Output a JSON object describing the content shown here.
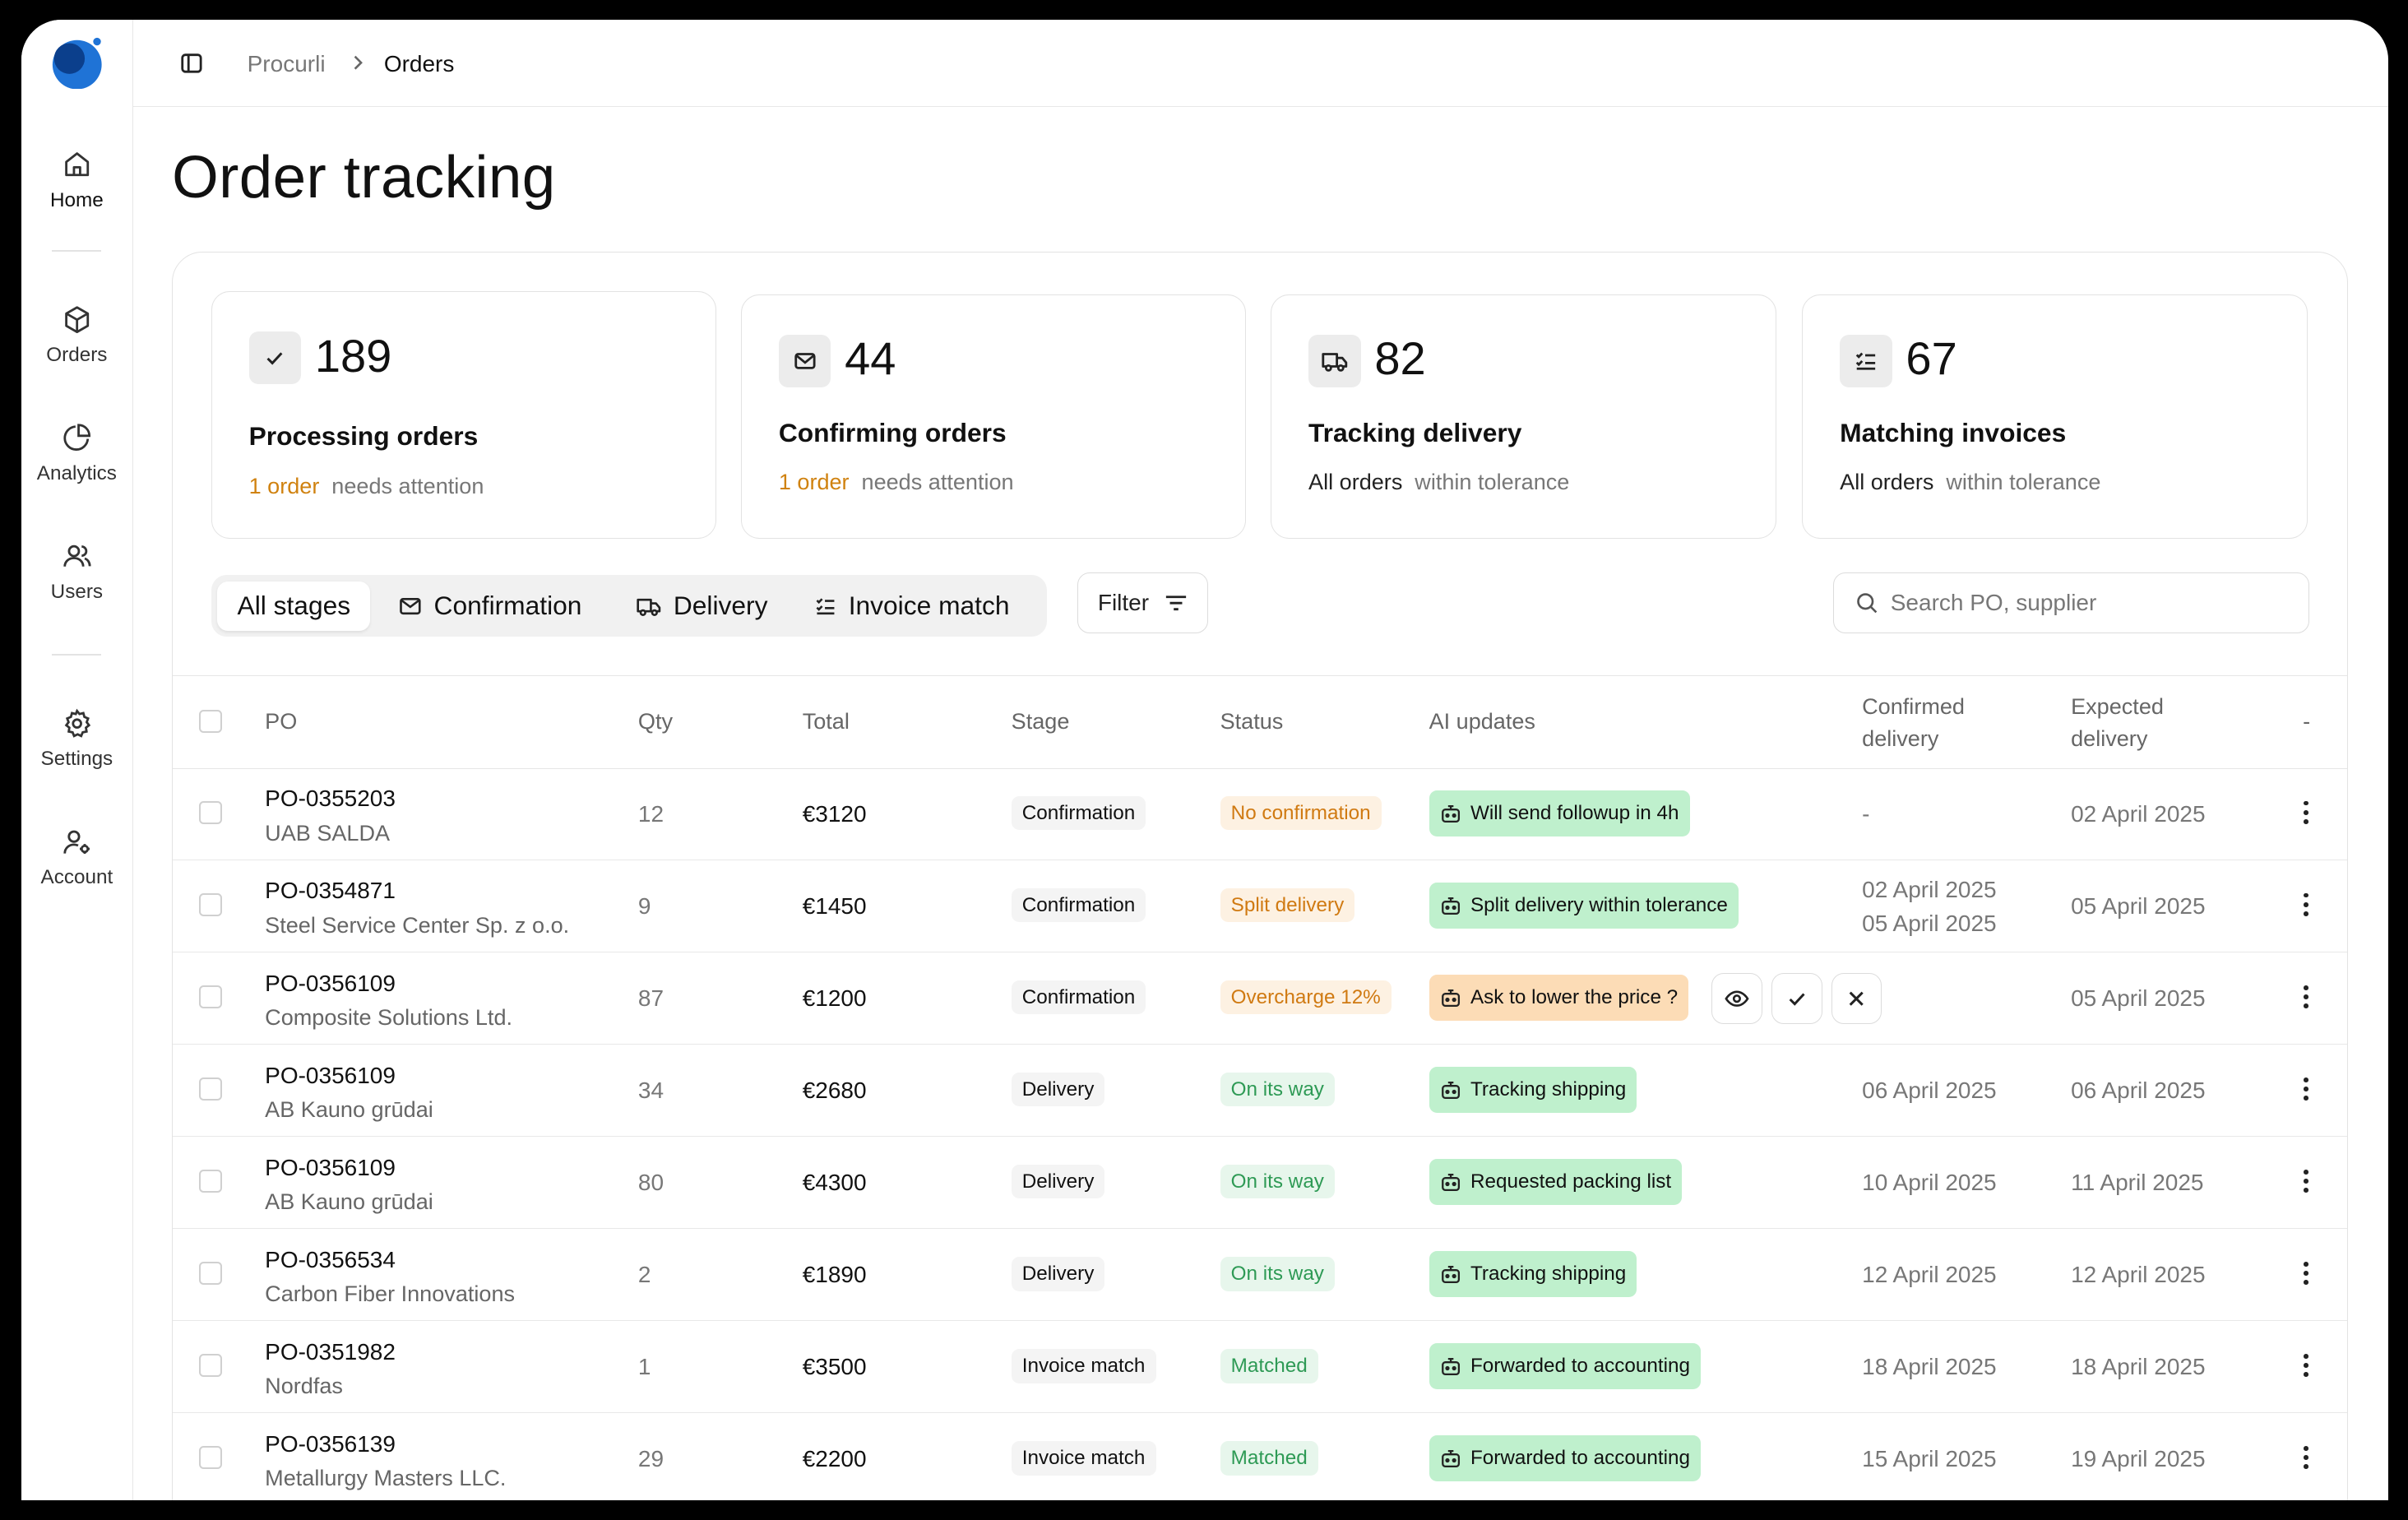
{
  "sidebar": {
    "items": [
      {
        "label": "Home",
        "icon": "home-icon"
      },
      {
        "label": "Orders",
        "icon": "box-icon"
      },
      {
        "label": "Analytics",
        "icon": "pie-chart-icon"
      },
      {
        "label": "Users",
        "icon": "users-icon"
      },
      {
        "label": "Settings",
        "icon": "gear-icon"
      },
      {
        "label": "Account",
        "icon": "user-cog-icon"
      }
    ]
  },
  "breadcrumb": {
    "root": "Procurli",
    "separator": ">",
    "current": "Orders"
  },
  "page": {
    "title": "Order tracking"
  },
  "summary": [
    {
      "count": "189",
      "label": "Processing orders",
      "highlight": "1 order",
      "rest": "needs attention",
      "icon": "check-icon"
    },
    {
      "count": "44",
      "label": "Confirming orders",
      "highlight": "1 order",
      "rest": "needs attention",
      "icon": "mail-icon"
    },
    {
      "count": "82",
      "label": "Tracking delivery",
      "highlight": "All orders",
      "rest": "within tolerance",
      "icon": "truck-icon"
    },
    {
      "count": "67",
      "label": "Matching invoices",
      "highlight": "All orders",
      "rest": "within tolerance",
      "icon": "list-check-icon"
    }
  ],
  "tabs": [
    {
      "label": "All stages",
      "active": true
    },
    {
      "label": "Confirmation"
    },
    {
      "label": "Delivery"
    },
    {
      "label": "Invoice match"
    }
  ],
  "filter_label": "Filter",
  "search": {
    "placeholder": "Search PO, supplier"
  },
  "table": {
    "headers": {
      "po": "PO",
      "qty": "Qty",
      "total": "Total",
      "stage": "Stage",
      "status": "Status",
      "ai": "AI updates",
      "confirmed_1": "Confirmed",
      "confirmed_2": "delivery",
      "expected_1": "Expected",
      "expected_2": "delivery",
      "more": "-"
    },
    "rows": [
      {
        "po": "PO-0355203",
        "supplier": "UAB SALDA",
        "qty": "12",
        "total": "€3120",
        "stage": "Confirmation",
        "status": "No confirmation",
        "status_tone": "orange",
        "ai": "Will send followup in 4h",
        "ai_tone": "green",
        "confirmed": "-",
        "confirmed2": "",
        "expected": "02 April 2025"
      },
      {
        "po": "PO-0354871",
        "supplier": "Steel Service Center Sp. z o.o.",
        "qty": "9",
        "total": "€1450",
        "stage": "Confirmation",
        "status": "Split delivery",
        "status_tone": "orange",
        "ai": "Split delivery within tolerance",
        "ai_tone": "green",
        "confirmed": "02 April 2025",
        "confirmed2": "05 April 2025",
        "expected": "05 April 2025"
      },
      {
        "po": "PO-0356109",
        "supplier": "Composite Solutions Ltd.",
        "qty": "87",
        "total": "€1200",
        "stage": "Confirmation",
        "status": "Overcharge 12%",
        "status_tone": "orange",
        "ai": "Ask to lower the price ?",
        "ai_tone": "orange",
        "confirmed": "",
        "confirmed2": "",
        "expected": "05 April 2025",
        "actions": true
      },
      {
        "po": "PO-0356109",
        "supplier": "AB Kauno grūdai",
        "qty": "34",
        "total": "€2680",
        "stage": "Delivery",
        "status": "On its way",
        "status_tone": "green",
        "ai": "Tracking shipping",
        "ai_tone": "green",
        "confirmed": "06 April 2025",
        "confirmed2": "",
        "expected": "06 April 2025"
      },
      {
        "po": "PO-0356109",
        "supplier": "AB Kauno grūdai",
        "qty": "80",
        "total": "€4300",
        "stage": "Delivery",
        "status": "On its way",
        "status_tone": "green",
        "ai": "Requested packing list",
        "ai_tone": "green",
        "confirmed": "10 April 2025",
        "confirmed2": "",
        "expected": "11 April 2025"
      },
      {
        "po": "PO-0356534",
        "supplier": "Carbon Fiber Innovations",
        "qty": "2",
        "total": "€1890",
        "stage": "Delivery",
        "status": "On its way",
        "status_tone": "green",
        "ai": "Tracking shipping",
        "ai_tone": "green",
        "confirmed": "12 April 2025",
        "confirmed2": "",
        "expected": "12 April 2025"
      },
      {
        "po": "PO-0351982",
        "supplier": "Nordfas",
        "qty": "1",
        "total": "€3500",
        "stage": "Invoice match",
        "status": "Matched",
        "status_tone": "green",
        "ai": "Forwarded to accounting",
        "ai_tone": "green",
        "confirmed": "18 April 2025",
        "confirmed2": "",
        "expected": "18 April 2025"
      },
      {
        "po": "PO-0356139",
        "supplier": "Metallurgy Masters LLC.",
        "qty": "29",
        "total": "€2200",
        "stage": "Invoice match",
        "status": "Matched",
        "status_tone": "green",
        "ai": "Forwarded to accounting",
        "ai_tone": "green",
        "confirmed": "15 April 2025",
        "confirmed2": "",
        "expected": "19 April 2025"
      }
    ]
  },
  "colors": {
    "accent_orange": "#d08210",
    "status_green": "#2e9a55",
    "ai_green_bg": "#bff0cd",
    "ai_orange_bg": "#fcdcb6",
    "logo_blue": "#1565c0"
  }
}
